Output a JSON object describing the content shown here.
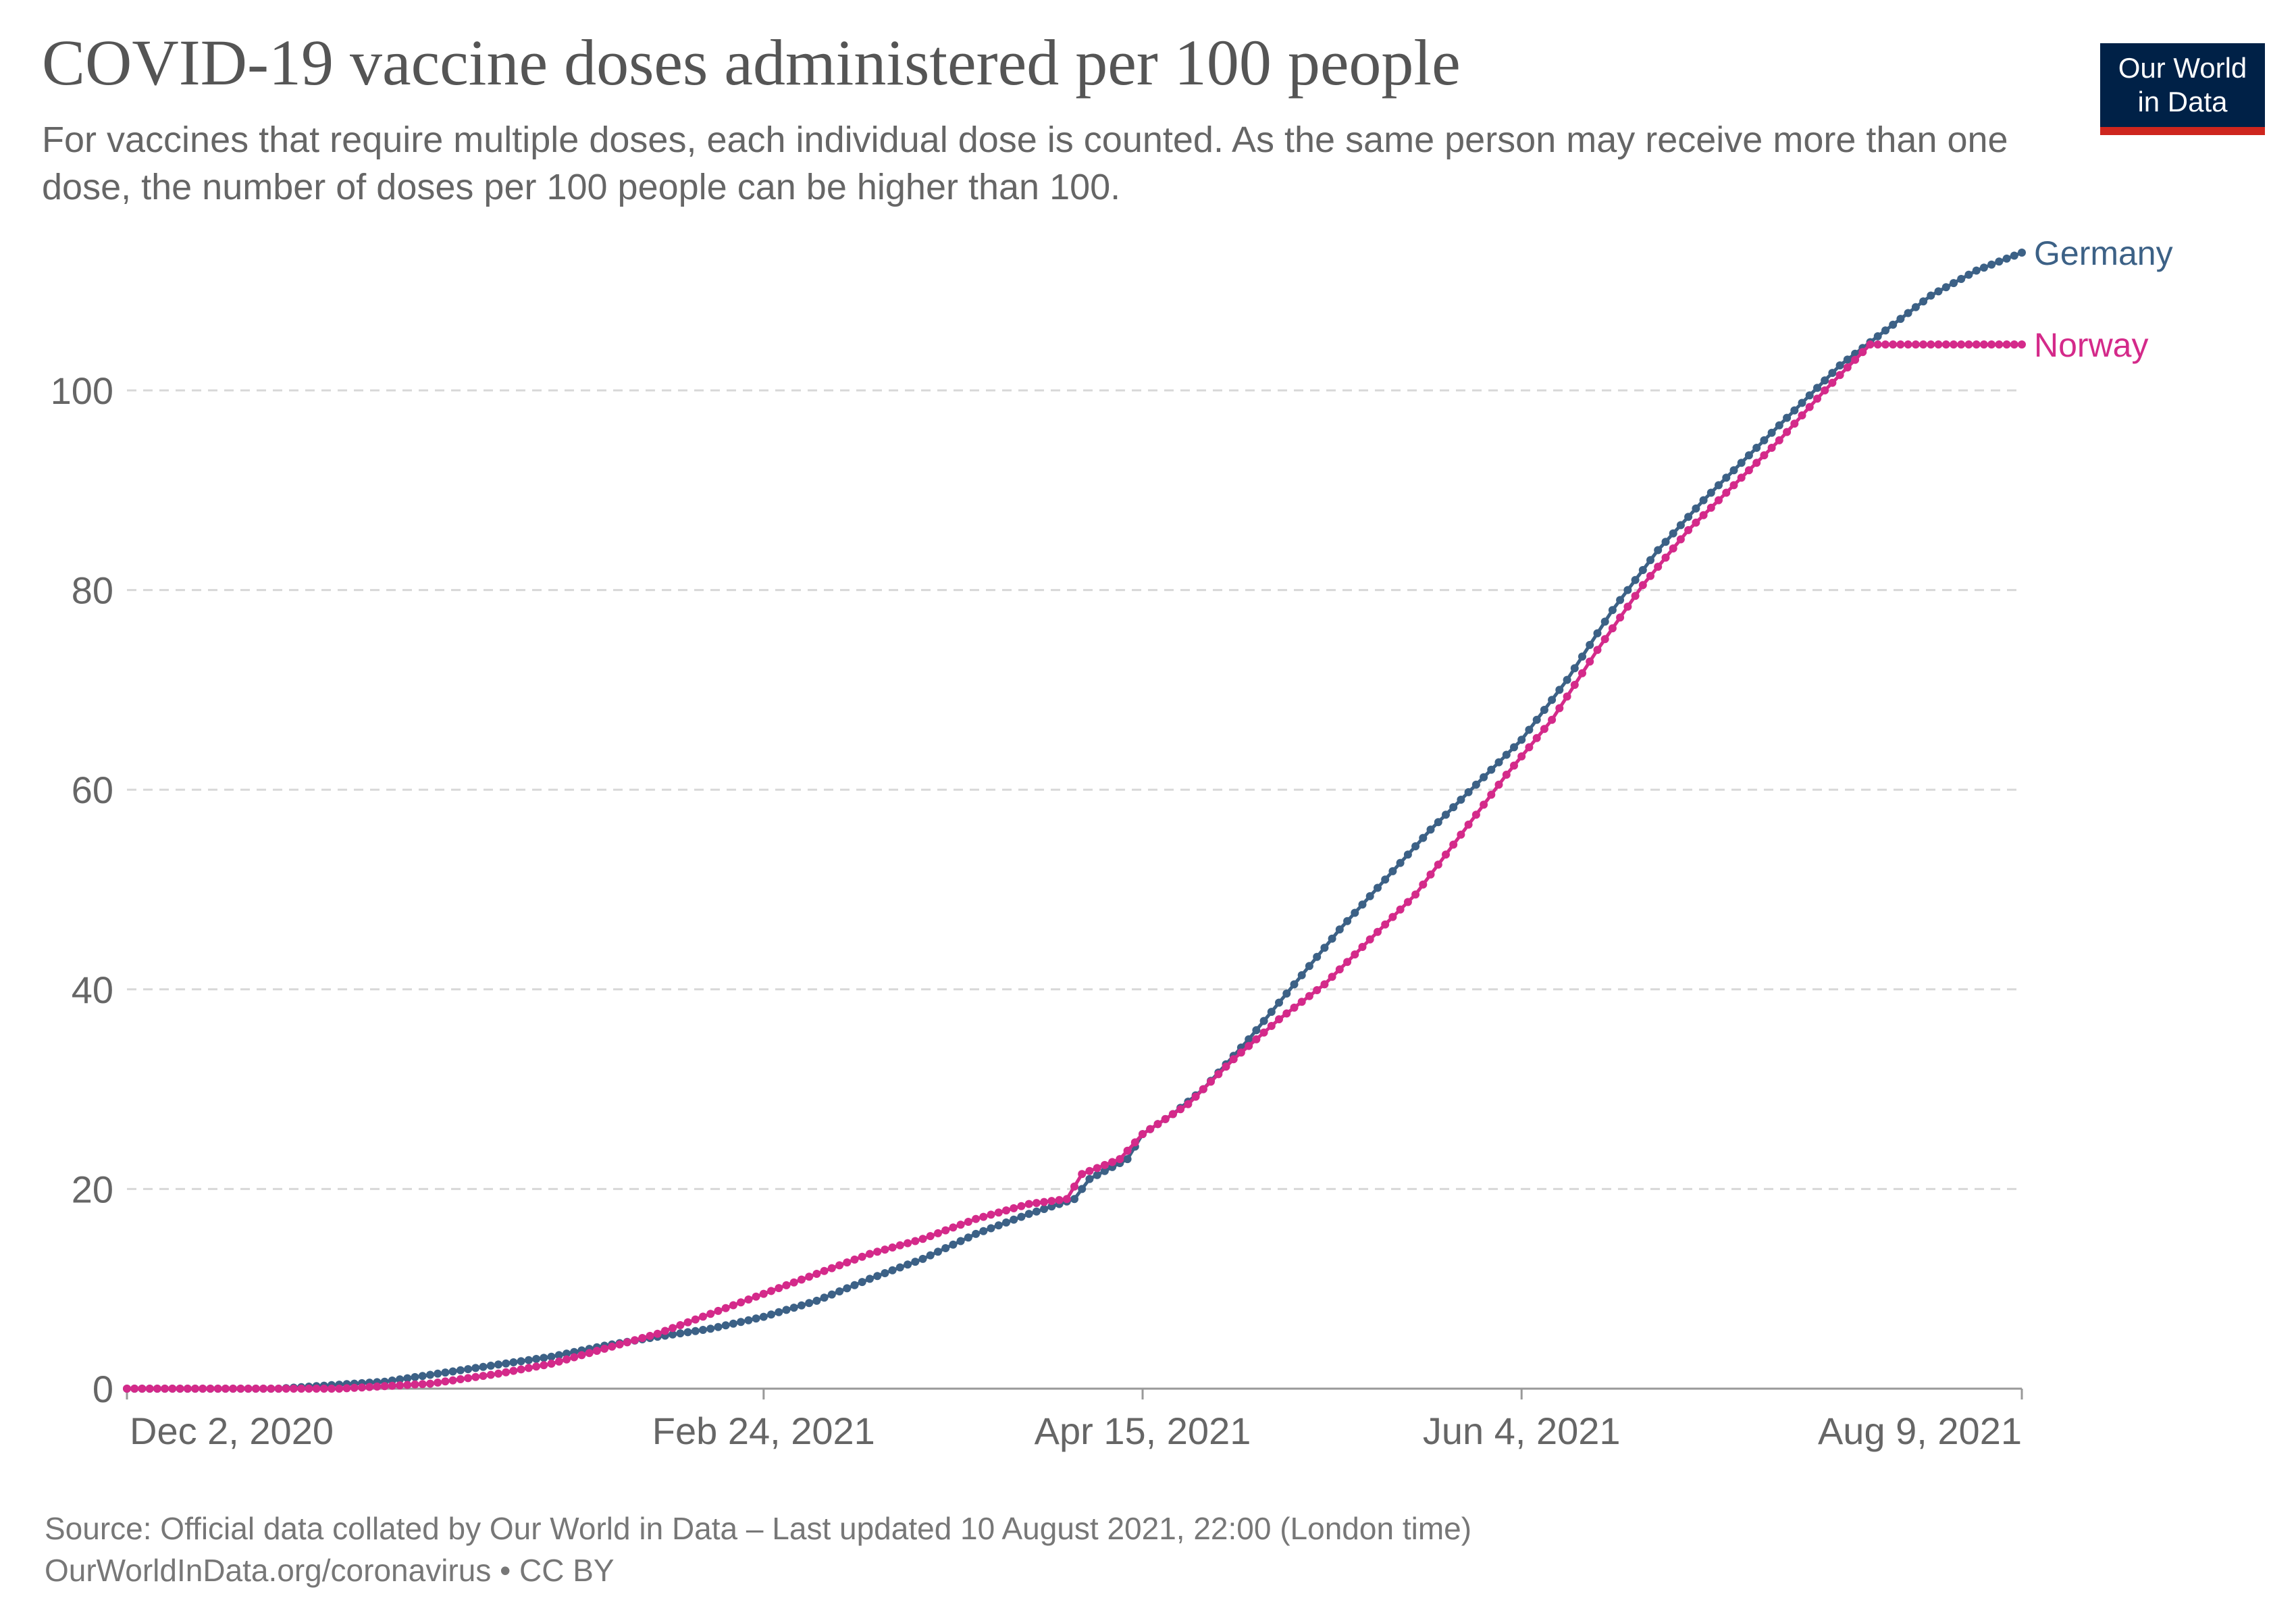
{
  "title": "COVID-19 vaccine doses administered per 100 people",
  "subtitle": "For vaccines that require multiple doses, each individual dose is counted. As the same person may receive more than one dose, the number of doses per 100 people can be higher than 100.",
  "logo": {
    "line1": "Our World",
    "line2": "in Data"
  },
  "footer": {
    "source": "Source: Official data collated by Our World in Data – Last updated 10 August 2021, 22:00 (London time)",
    "license": "OurWorldInData.org/coronavirus • CC BY"
  },
  "colors": {
    "germany": "#3c6186",
    "norway": "#d42a8a",
    "grid": "#d8d8d8",
    "axis": "#999999"
  },
  "chart_data": {
    "type": "line",
    "title": "COVID-19 vaccine doses administered per 100 people",
    "xlabel": "",
    "ylabel": "",
    "ylim": [
      0,
      115
    ],
    "yticks": [
      0,
      20,
      40,
      60,
      80,
      100
    ],
    "xlim_day": [
      0,
      250
    ],
    "xticks": [
      {
        "day": 0,
        "label": "Dec 2, 2020"
      },
      {
        "day": 84,
        "label": "Feb 24, 2021"
      },
      {
        "day": 134,
        "label": "Apr 15, 2021"
      },
      {
        "day": 184,
        "label": "Jun 4, 2021"
      },
      {
        "day": 250,
        "label": "Aug 9, 2021"
      }
    ],
    "series": [
      {
        "name": "Germany",
        "x_day": [
          0,
          20,
          26,
          34,
          41,
          48,
          56,
          63,
          70,
          77,
          84,
          91,
          98,
          105,
          112,
          119,
          125,
          127,
          132,
          134,
          138,
          142,
          148,
          154,
          160,
          166,
          172,
          178,
          184,
          190,
          196,
          202,
          208,
          214,
          220,
          226,
          232,
          238,
          244,
          250
        ],
        "values": [
          0,
          0,
          0.3,
          0.7,
          1.5,
          2.3,
          3.2,
          4.3,
          5.2,
          6.0,
          7.2,
          8.8,
          11.0,
          13.0,
          15.5,
          17.5,
          19.0,
          21.0,
          23.0,
          25.5,
          27.5,
          30.0,
          35.0,
          40.5,
          46.0,
          51.0,
          56.0,
          60.5,
          65.0,
          71.0,
          78.0,
          84.0,
          89.0,
          93.5,
          98.0,
          102.5,
          106.0,
          109.5,
          112.0,
          113.8
        ]
      },
      {
        "name": "Norway",
        "x_day": [
          0,
          28,
          40,
          49,
          56,
          63,
          70,
          77,
          84,
          91,
          98,
          105,
          112,
          119,
          124,
          126,
          131,
          134,
          140,
          146,
          152,
          158,
          164,
          170,
          176,
          182,
          188,
          194,
          200,
          206,
          212,
          218,
          224,
          230,
          236,
          242,
          245,
          250
        ],
        "values": [
          0,
          0,
          0.5,
          1.5,
          2.5,
          4.0,
          5.5,
          7.5,
          9.5,
          11.5,
          13.5,
          15.0,
          17.0,
          18.5,
          19.0,
          21.5,
          23.0,
          25.5,
          28.5,
          33.0,
          37.0,
          40.5,
          45.0,
          49.5,
          55.5,
          61.5,
          67.0,
          74.0,
          80.5,
          86.0,
          90.5,
          95.0,
          100.0,
          104.6,
          104.6,
          104.6,
          104.6,
          104.6
        ]
      }
    ]
  }
}
